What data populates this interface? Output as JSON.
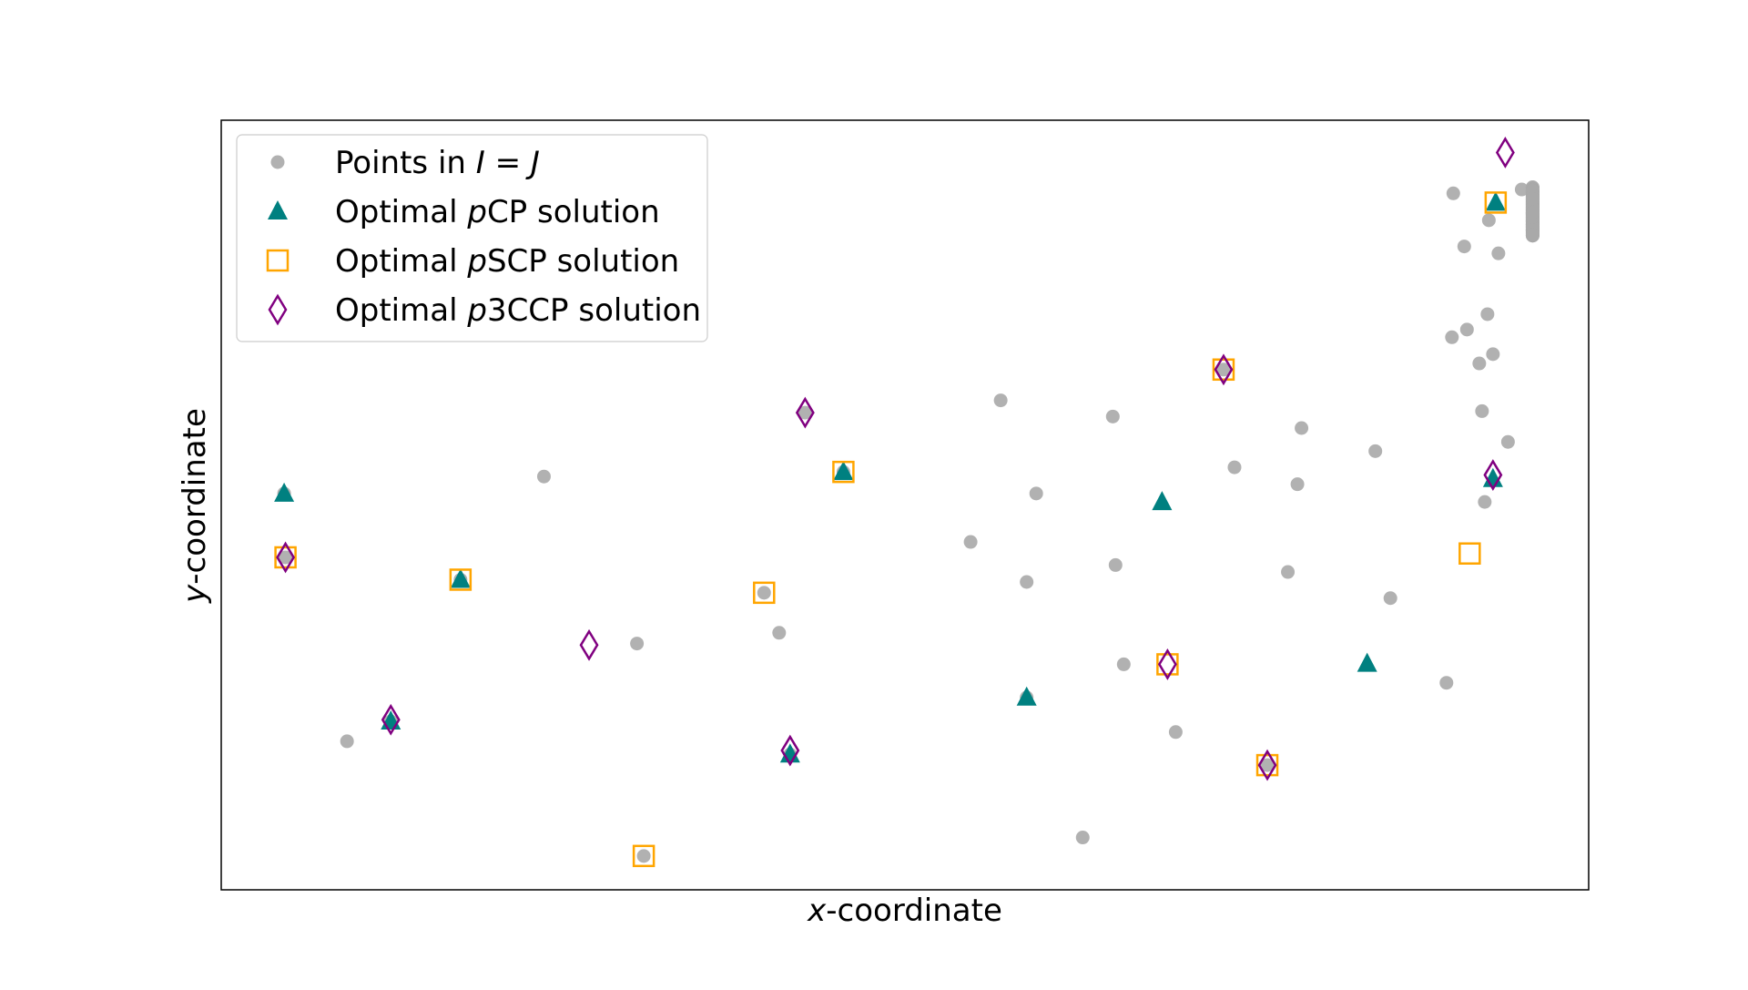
{
  "chart_data": {
    "type": "scatter",
    "title": "",
    "xlabel_var": "x",
    "xlabel_rest": "-coordinate",
    "ylabel_var": "y",
    "ylabel_rest": "-coordinate",
    "xlim": [
      0,
      100
    ],
    "ylim": [
      0,
      100
    ],
    "ticks_visible": false,
    "grid": false,
    "legend_position": "top-left",
    "colors": {
      "points": "#a9a9a9",
      "pcp": "#008080",
      "pscp": "#ffa500",
      "p3ccp": "#800080"
    },
    "legend": [
      {
        "key": "points",
        "marker": "circle",
        "parts": [
          {
            "t": "Points in ",
            "i": false
          },
          {
            "t": "I",
            "i": true
          },
          {
            "t": " = ",
            "i": false
          },
          {
            "t": "J",
            "i": true
          }
        ]
      },
      {
        "key": "pcp",
        "marker": "triangle",
        "parts": [
          {
            "t": "Optimal ",
            "i": false
          },
          {
            "t": "p",
            "i": true
          },
          {
            "t": "CP solution",
            "i": false
          }
        ]
      },
      {
        "key": "pscp",
        "marker": "square",
        "parts": [
          {
            "t": "Optimal ",
            "i": false
          },
          {
            "t": "p",
            "i": true
          },
          {
            "t": "SCP solution",
            "i": false
          }
        ]
      },
      {
        "key": "p3ccp",
        "marker": "diamond",
        "parts": [
          {
            "t": "Optimal ",
            "i": false
          },
          {
            "t": "p",
            "i": true
          },
          {
            "t": "3CCP solution",
            "i": false
          }
        ]
      }
    ],
    "series": [
      {
        "name": "Points in I = J",
        "key": "points",
        "marker": "circle",
        "points": [
          [
            4.6,
            51.5
          ],
          [
            4.7,
            43.2
          ],
          [
            9.2,
            19.3
          ],
          [
            12.4,
            21.9
          ],
          [
            17.5,
            40.3
          ],
          [
            23.6,
            53.7
          ],
          [
            30.4,
            32.0
          ],
          [
            30.9,
            4.4
          ],
          [
            39.7,
            38.6
          ],
          [
            40.8,
            33.4
          ],
          [
            41.6,
            17.6
          ],
          [
            42.7,
            62.0
          ],
          [
            45.5,
            54.3
          ],
          [
            54.8,
            45.2
          ],
          [
            57.0,
            63.6
          ],
          [
            58.9,
            40.0
          ],
          [
            58.9,
            25.0
          ],
          [
            59.6,
            51.5
          ],
          [
            63.0,
            6.8
          ],
          [
            65.2,
            61.5
          ],
          [
            65.4,
            42.2
          ],
          [
            66.0,
            29.3
          ],
          [
            69.8,
            20.5
          ],
          [
            73.3,
            67.6
          ],
          [
            74.1,
            54.9
          ],
          [
            76.5,
            16.2
          ],
          [
            78.0,
            41.3
          ],
          [
            78.7,
            52.7
          ],
          [
            79.0,
            60.0
          ],
          [
            84.4,
            57.0
          ],
          [
            85.5,
            37.9
          ],
          [
            89.6,
            26.9
          ],
          [
            90.0,
            71.8
          ],
          [
            90.1,
            90.5
          ],
          [
            90.9,
            83.6
          ],
          [
            91.1,
            72.8
          ],
          [
            92.0,
            68.4
          ],
          [
            92.2,
            62.2
          ],
          [
            92.4,
            50.4
          ],
          [
            92.6,
            74.8
          ],
          [
            92.7,
            87.0
          ],
          [
            93.0,
            69.6
          ],
          [
            93.4,
            82.7
          ],
          [
            94.1,
            58.2
          ],
          [
            95.9,
            87.9
          ],
          [
            95.9,
            85.7
          ],
          [
            95.9,
            85.0
          ],
          [
            95.9,
            85.7
          ],
          [
            95.9,
            89.1
          ],
          [
            95.9,
            86.4
          ],
          [
            95.9,
            87.2
          ],
          [
            95.1,
            91.0
          ],
          [
            95.9,
            85.6
          ],
          [
            95.9,
            91.3
          ],
          [
            95.9,
            89.2
          ],
          [
            95.9,
            88.7
          ],
          [
            95.9,
            85.0
          ],
          [
            95.9,
            87.8
          ],
          [
            95.9,
            88.4
          ],
          [
            95.9,
            86.5
          ],
          [
            95.9,
            88.1
          ],
          [
            95.9,
            89.9
          ],
          [
            95.9,
            89.6
          ],
          [
            95.9,
            91.2
          ],
          [
            95.9,
            86.9
          ],
          [
            95.9,
            88.9
          ],
          [
            95.9,
            87.6
          ],
          [
            95.9,
            90.6
          ],
          [
            95.9,
            88.6
          ],
          [
            95.9,
            86.1
          ],
          [
            95.9,
            90.2
          ],
          [
            95.9,
            87.4
          ],
          [
            95.9,
            89.4
          ],
          [
            95.9,
            86.8
          ],
          [
            95.9,
            90.0
          ],
          [
            95.9,
            88.0
          ],
          [
            95.9,
            85.4
          ],
          [
            95.9,
            90.8
          ],
          [
            95.9,
            87.0
          ],
          [
            95.9,
            89.1
          ],
          [
            95.9,
            86.2
          ],
          [
            95.9,
            88.3
          ],
          [
            95.9,
            87.7
          ],
          [
            95.9,
            89.7
          ],
          [
            95.9,
            86.6
          ],
          [
            95.9,
            90.4
          ],
          [
            95.9,
            85.9
          ],
          [
            95.9,
            88.8
          ],
          [
            95.9,
            87.3
          ],
          [
            95.9,
            89.5
          ],
          [
            95.9,
            86.3
          ],
          [
            95.9,
            90.7
          ],
          [
            95.9,
            87.9
          ],
          [
            95.9,
            85.2
          ],
          [
            95.9,
            88.2
          ],
          [
            95.9,
            90.9
          ],
          [
            95.9,
            86.7
          ],
          [
            95.9,
            89.3
          ],
          [
            95.9,
            87.5
          ],
          [
            95.9,
            88.5
          ],
          [
            95.9,
            86.0
          ],
          [
            95.9,
            90.3
          ],
          [
            95.9,
            87.1
          ],
          [
            95.9,
            89.8
          ],
          [
            95.9,
            85.8
          ],
          [
            95.9,
            88.4
          ],
          [
            95.9,
            86.5
          ],
          [
            95.9,
            90.1
          ],
          [
            95.9,
            87.8
          ],
          [
            95.9,
            89.0
          ],
          [
            95.9,
            85.5
          ],
          [
            95.9,
            88.7
          ],
          [
            95.9,
            86.8
          ],
          [
            95.9,
            90.5
          ],
          [
            95.9,
            87.6
          ],
          [
            95.9,
            89.2
          ],
          [
            95.9,
            86.1
          ],
          [
            95.9,
            88.1
          ],
          [
            95.9,
            87.3
          ],
          [
            95.9,
            90.0
          ],
          [
            95.9,
            85.3
          ],
          [
            95.9,
            89.6
          ],
          [
            95.9,
            86.4
          ],
          [
            95.9,
            88.9
          ],
          [
            95.9,
            87.0
          ],
          [
            95.9,
            90.8
          ],
          [
            95.9,
            88.3
          ],
          [
            95.9,
            85.7
          ],
          [
            95.9,
            89.4
          ],
          [
            95.9,
            86.9
          ],
          [
            95.9,
            87.9
          ],
          [
            95.9,
            90.2
          ],
          [
            95.9,
            88.6
          ],
          [
            95.9,
            86.2
          ],
          [
            95.9,
            89.8
          ],
          [
            95.9,
            87.4
          ],
          [
            95.9,
            85.1
          ],
          [
            95.9,
            88.0
          ]
        ]
      },
      {
        "name": "Optimal pCP solution",
        "key": "pcp",
        "marker": "triangle",
        "points": [
          [
            4.6,
            51.5
          ],
          [
            12.4,
            21.9
          ],
          [
            17.5,
            40.3
          ],
          [
            41.6,
            17.6
          ],
          [
            45.5,
            54.3
          ],
          [
            58.9,
            25.0
          ],
          [
            68.8,
            50.4
          ],
          [
            83.8,
            29.4
          ],
          [
            93.0,
            53.4
          ],
          [
            93.2,
            89.3
          ]
        ]
      },
      {
        "name": "Optimal pSCP solution",
        "key": "pscp",
        "marker": "square",
        "points": [
          [
            4.7,
            43.2
          ],
          [
            17.5,
            40.3
          ],
          [
            30.9,
            4.4
          ],
          [
            39.7,
            38.6
          ],
          [
            45.5,
            54.3
          ],
          [
            69.2,
            29.3
          ],
          [
            73.3,
            67.6
          ],
          [
            76.5,
            16.2
          ],
          [
            91.3,
            43.7
          ],
          [
            93.2,
            89.3
          ]
        ]
      },
      {
        "name": "Optimal p3CCP solution",
        "key": "p3ccp",
        "marker": "diamond",
        "points": [
          [
            4.7,
            43.2
          ],
          [
            12.4,
            22.1
          ],
          [
            26.9,
            31.8
          ],
          [
            41.6,
            18.1
          ],
          [
            42.7,
            62.0
          ],
          [
            69.2,
            29.3
          ],
          [
            73.3,
            67.6
          ],
          [
            76.5,
            16.2
          ],
          [
            93.0,
            53.9
          ],
          [
            93.9,
            95.8
          ]
        ]
      }
    ]
  }
}
